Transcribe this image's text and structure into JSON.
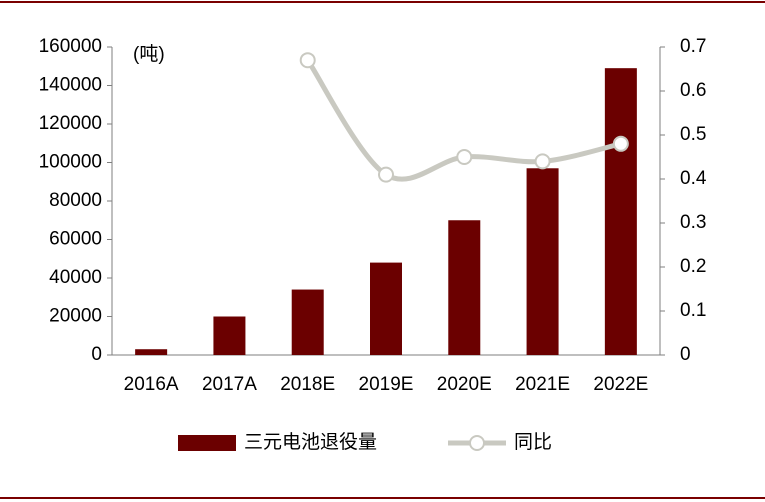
{
  "chart_data": {
    "type": "bar-line",
    "unit_label": "(吨)",
    "categories": [
      "2016A",
      "2017A",
      "2018E",
      "2019E",
      "2020E",
      "2021E",
      "2022E"
    ],
    "series": [
      {
        "name": "三元电池退役量",
        "type": "bar",
        "color": "#6b0000",
        "values": [
          3000,
          20000,
          34000,
          48000,
          70000,
          97000,
          149000
        ]
      },
      {
        "name": "同比",
        "type": "line",
        "axis": "y2",
        "color": "#c9c9c1",
        "values": [
          null,
          null,
          0.67,
          0.41,
          0.45,
          0.44,
          0.48
        ]
      }
    ],
    "ylim": [
      0,
      160000
    ],
    "yticks": [
      0,
      20000,
      40000,
      60000,
      80000,
      100000,
      120000,
      140000,
      160000
    ],
    "y2lim": [
      0,
      0.7
    ],
    "y2ticks": [
      0,
      0.1,
      0.2,
      0.3,
      0.4,
      0.5,
      0.6,
      0.7
    ],
    "legend": "bottom"
  }
}
